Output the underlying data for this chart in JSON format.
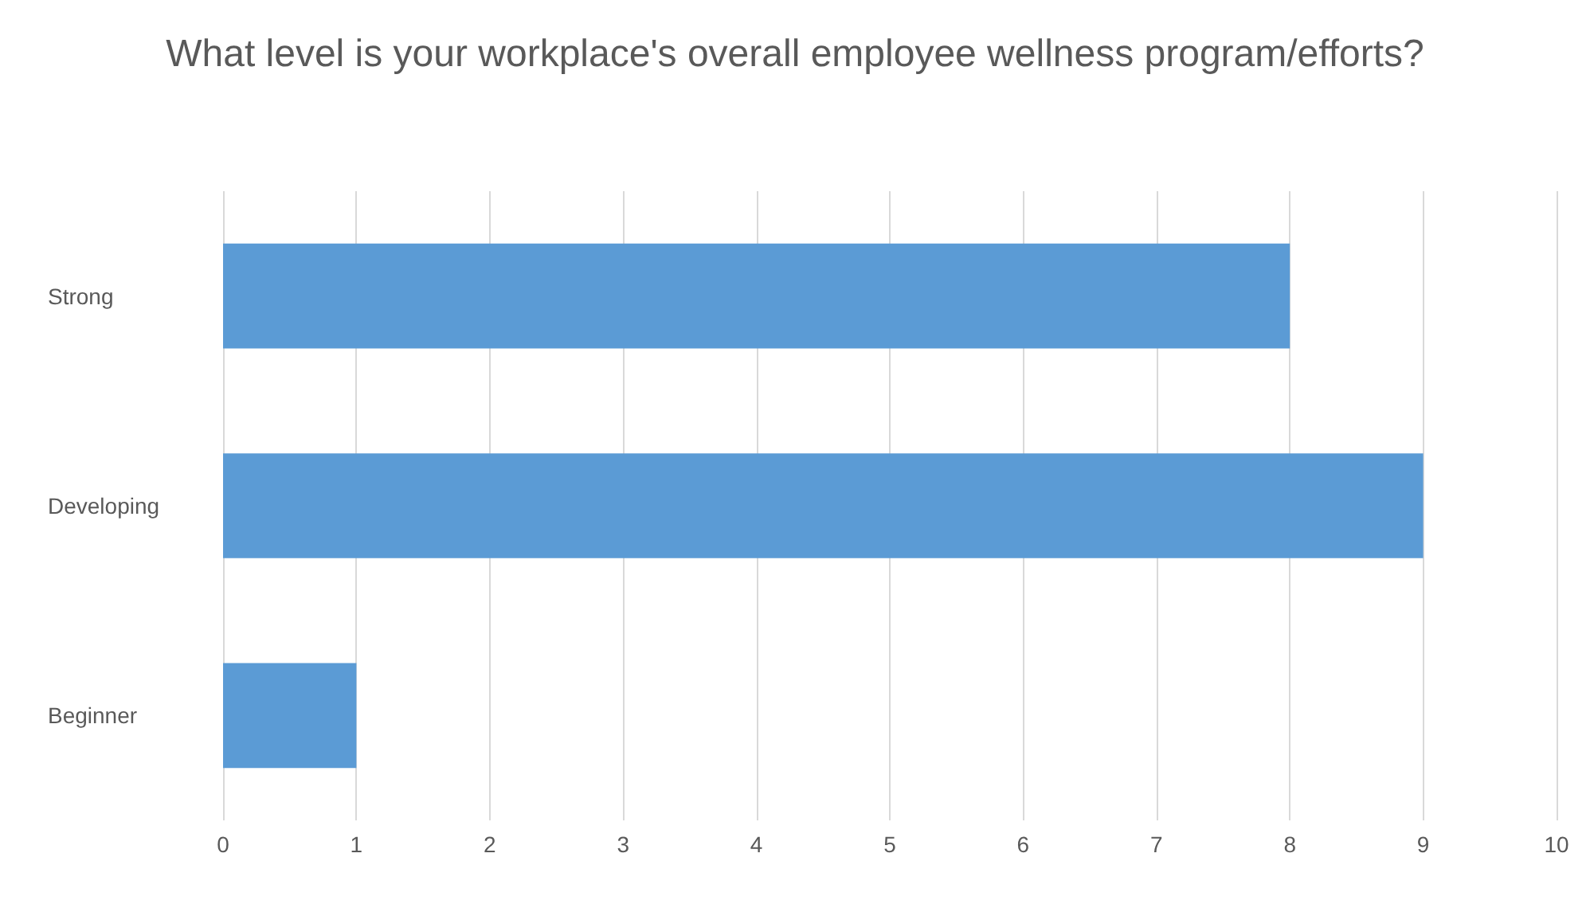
{
  "chart_data": {
    "type": "bar",
    "orientation": "horizontal",
    "title": "What level is your workplace's overall employee wellness program/efforts?",
    "categories": [
      "Strong",
      "Developing",
      "Beginner"
    ],
    "values": [
      8,
      9,
      1
    ],
    "color": "#5b9bd5",
    "xlim": [
      0,
      10
    ],
    "xticks": [
      0,
      1,
      2,
      3,
      4,
      5,
      6,
      7,
      8,
      9,
      10
    ],
    "grid": "x"
  }
}
